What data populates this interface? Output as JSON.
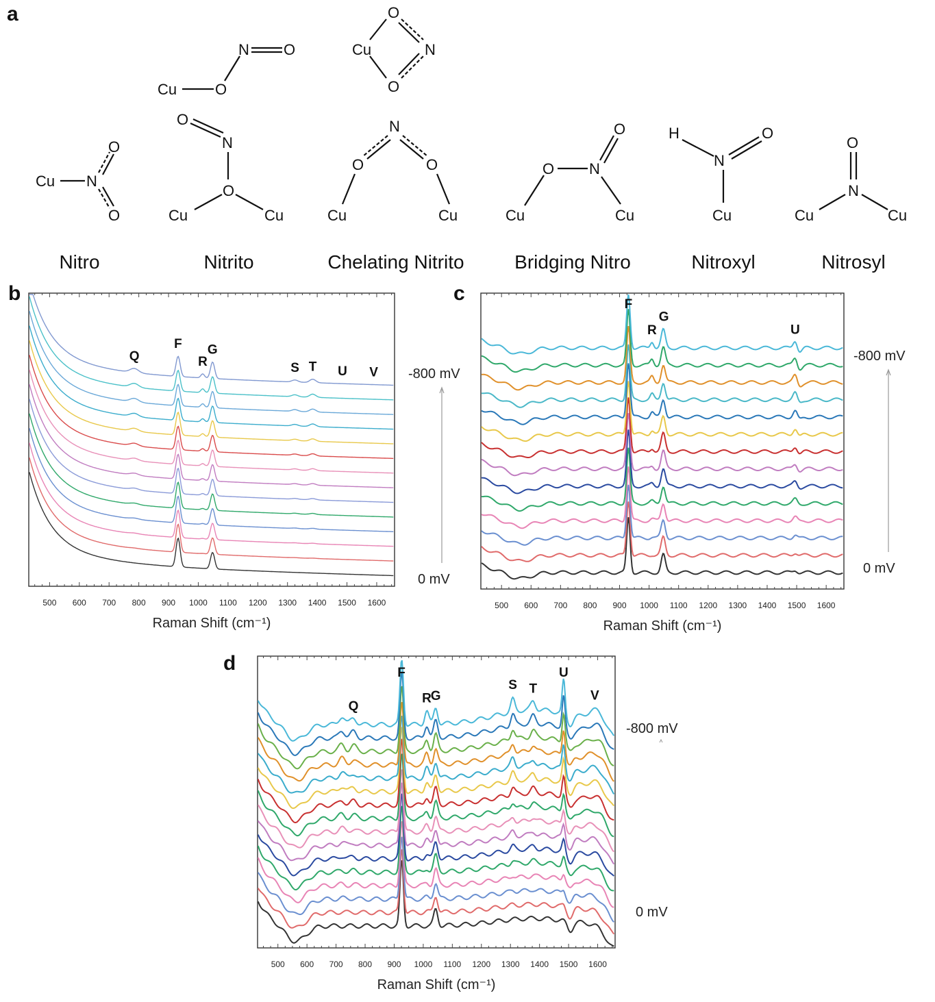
{
  "panel_labels": {
    "a": "a",
    "b": "b",
    "c": "c",
    "d": "d"
  },
  "structures": {
    "atoms": {
      "cu": "Cu",
      "n": "N",
      "o": "O",
      "h": "H"
    },
    "names": [
      "Nitro",
      "Nitrito",
      "Chelating Nitrito",
      "Bridging Nitro",
      "Nitroxyl",
      "Nitrosyl"
    ]
  },
  "chart_data": [
    {
      "type": "line",
      "panel": "b",
      "xlabel": "Raman Shift (cm⁻¹)",
      "xlim": [
        430,
        1660
      ],
      "xticks": [
        500,
        600,
        700,
        800,
        900,
        1000,
        1100,
        1200,
        1300,
        1400,
        1500,
        1600
      ],
      "n_spectra": 14,
      "potential_labels": {
        "top": "-800 mV",
        "bottom": "0 mV"
      },
      "series_colors": [
        "#333333",
        "#e06a6a",
        "#e884b5",
        "#6a8fd0",
        "#2fa86a",
        "#8a9ad8",
        "#c07cc0",
        "#e890b8",
        "#d94a4a",
        "#e8c84a",
        "#3aaccc",
        "#6aa8d8",
        "#4ac0c8",
        "#8098d0"
      ],
      "peak_labels": [
        {
          "label": "Q",
          "x": 785
        },
        {
          "label": "F",
          "x": 932
        },
        {
          "label": "R",
          "x": 1015
        },
        {
          "label": "G",
          "x": 1048
        },
        {
          "label": "S",
          "x": 1325
        },
        {
          "label": "T",
          "x": 1385
        },
        {
          "label": "U",
          "x": 1485
        },
        {
          "label": "V",
          "x": 1590
        }
      ]
    },
    {
      "type": "line",
      "panel": "c",
      "xlabel": "Raman Shift (cm⁻¹)",
      "xlim": [
        430,
        1660
      ],
      "xticks": [
        500,
        600,
        700,
        800,
        900,
        1000,
        1100,
        1200,
        1300,
        1400,
        1500,
        1600
      ],
      "n_spectra": 14,
      "potential_labels": {
        "top": "-800 mV",
        "bottom": "0 mV"
      },
      "series_colors": [
        "#333333",
        "#e06a6a",
        "#6a8fd0",
        "#e884b5",
        "#2fa86a",
        "#2a4aa0",
        "#c07cc0",
        "#c83030",
        "#e8c84a",
        "#2a78b8",
        "#4ab8c8",
        "#e0902a",
        "#2fa86a",
        "#4ab8d8"
      ],
      "peak_labels": [
        {
          "label": "F",
          "x": 930
        },
        {
          "label": "R",
          "x": 1010
        },
        {
          "label": "G",
          "x": 1050
        },
        {
          "label": "U",
          "x": 1495
        }
      ]
    },
    {
      "type": "line",
      "panel": "d",
      "xlabel": "Raman Shift (cm⁻¹)",
      "xlim": [
        430,
        1660
      ],
      "xticks": [
        500,
        600,
        700,
        800,
        900,
        1000,
        1100,
        1200,
        1300,
        1400,
        1500,
        1600
      ],
      "n_spectra": 16,
      "potential_labels": {
        "top": "-800 mV",
        "bottom": "0 mV"
      },
      "series_colors": [
        "#333333",
        "#e06a6a",
        "#6a8fd0",
        "#e884b5",
        "#2fa86a",
        "#2a4aa0",
        "#c07cc0",
        "#e890b8",
        "#2fa86a",
        "#c83030",
        "#e8c84a",
        "#3aaccc",
        "#e0902a",
        "#6ab04a",
        "#2a78b8",
        "#4ab8d8"
      ],
      "peak_labels": [
        {
          "label": "Q",
          "x": 760
        },
        {
          "label": "F",
          "x": 925
        },
        {
          "label": "R",
          "x": 1012
        },
        {
          "label": "G",
          "x": 1043
        },
        {
          "label": "S",
          "x": 1308
        },
        {
          "label": "T",
          "x": 1378
        },
        {
          "label": "U",
          "x": 1483
        },
        {
          "label": "V",
          "x": 1590
        }
      ]
    }
  ]
}
